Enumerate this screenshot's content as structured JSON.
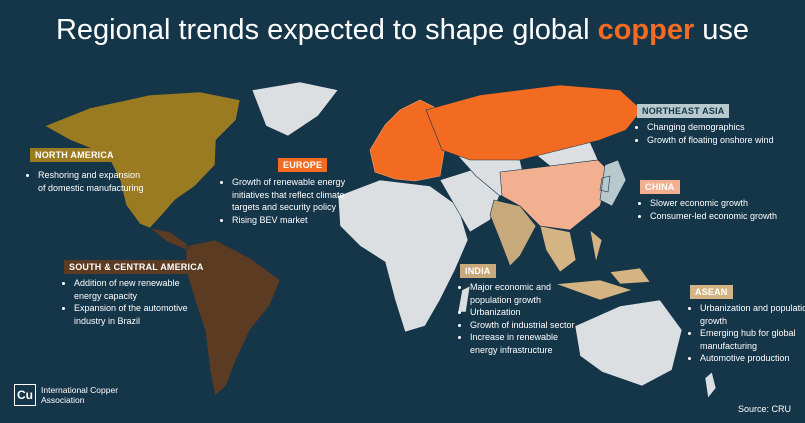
{
  "header": {
    "title_parts": [
      "Regional trends expected to shape global",
      "copper",
      "use"
    ]
  },
  "regions": [
    {
      "label": "NORTH AMERICA",
      "bullets": [
        "Reshoring and expansion of domestic manufacturing"
      ]
    },
    {
      "label": "EUROPE",
      "bullets": [
        "Growth of renewable energy initiatives that reflect climate targets and security policy",
        "Rising BEV market"
      ]
    },
    {
      "label": "NORTHEAST ASIA",
      "bullets": [
        "Changing demographics",
        "Growth of floating onshore wind"
      ]
    },
    {
      "label": "CHINA",
      "bullets": [
        "Slower economic growth",
        "Consumer-led economic growth"
      ]
    },
    {
      "label": "SOUTH & CENTRAL AMERICA",
      "bullets": [
        "Addition of new renewable energy capacity",
        "Expansion of the automotive industry in Brazil"
      ]
    },
    {
      "label": "INDIA",
      "bullets": [
        "Major economic and population growth",
        "Urbanization",
        "Growth of industrial sector",
        "Increase in renewable energy infrastructure"
      ]
    },
    {
      "label": "ASEAN",
      "bullets": [
        "Urbanization and population growth",
        "Emerging hub for global manufacturing",
        "Automotive production"
      ]
    }
  ],
  "footer": {
    "logo_mark": "Cu",
    "organization": "International Copper Association",
    "source": "Source: CRU"
  }
}
